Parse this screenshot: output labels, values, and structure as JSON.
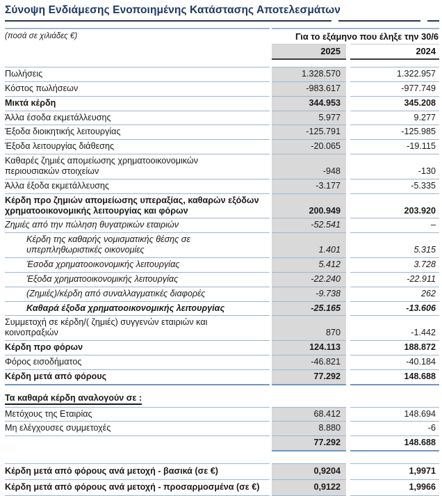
{
  "title": "Σύνοψη Ενδιάμεσης Ενοποιημένης Κατάστασης Αποτελεσμάτων",
  "table": {
    "units_note": "(ποσά σε χιλιάδες €)",
    "period_header": "Για το εξάμηνο που έληξε την 30/6",
    "columns": [
      "2025",
      "2024"
    ],
    "rows": [
      {
        "label": "Πωλήσεις",
        "v2025": "1.328.570",
        "v2024": "1.322.957",
        "style": ""
      },
      {
        "label": "Κόστος πωλήσεων",
        "v2025": "-983.617",
        "v2024": "-977.749",
        "style": ""
      },
      {
        "label": "Μικτά κέρδη",
        "v2025": "344.953",
        "v2024": "345.208",
        "style": "bold"
      },
      {
        "label": "Άλλα έσοδα εκμετάλλευσης",
        "v2025": "5.977",
        "v2024": "9.277",
        "style": ""
      },
      {
        "label": "Έξοδα διοικητικής λειτουργίας",
        "v2025": "-125.791",
        "v2024": "-125.985",
        "style": ""
      },
      {
        "label": "Έξοδα λειτουργίας διάθεσης",
        "v2025": "-20.065",
        "v2024": "-19.115",
        "style": ""
      },
      {
        "label": "Καθαρές ζημιές απομείωσης χρηματοοικονομικών\nπεριουσιακών στοιχείων",
        "v2025": "-948",
        "v2024": "-130",
        "style": ""
      },
      {
        "label": "Άλλα έξοδα εκμετάλλευσης",
        "v2025": "-3.177",
        "v2024": "-5.335",
        "style": ""
      },
      {
        "label": "Κέρδη προ ζημιών απομείωσης υπεραξίας, καθαρών εξόδων\nχρηματοοικονομικής λειτουργίας και φόρων",
        "v2025": "200.949",
        "v2024": "203.920",
        "style": "bold"
      },
      {
        "label": "Ζημιές από την πώληση θυγατρικών εταιριών",
        "v2025": "-52.541",
        "v2024": "–",
        "style": "italic"
      },
      {
        "label": "Κέρδη της καθαρής νομισματικής θέσης σε\nυπερπληθωριστικές οικονομίες",
        "v2025": "1.401",
        "v2024": "5.315",
        "style": "italic indent"
      },
      {
        "label": "Έσοδα χρηματοοικονομικής λειτουργίας",
        "v2025": "5.412",
        "v2024": "3.728",
        "style": "italic indent"
      },
      {
        "label": "Έξοδα χρηματοοικονομικής λειτουργίας",
        "v2025": "-22.240",
        "v2024": "-22.911",
        "style": "italic indent"
      },
      {
        "label": "(Ζημιές)/κέρδη από συναλλαγματικές διαφορές",
        "v2025": "-9.738",
        "v2024": "262",
        "style": "italic indent"
      },
      {
        "label": "Καθαρά έξοδα χρηματοοικονομικής λειτουργίας",
        "v2025": "-25.165",
        "v2024": "-13.606",
        "style": "bold italic indent"
      },
      {
        "label": "Συμμετοχή σε κέρδη/( ζημιές) συγγενών εταιριών και\nκοινοπραξιών",
        "v2025": "870",
        "v2024": "-1.442",
        "style": ""
      },
      {
        "label": "Κέρδη προ φόρων",
        "v2025": "124.113",
        "v2024": "188.872",
        "style": "bold"
      },
      {
        "label": "Φόρος εισοδήματος",
        "v2025": "-46.821",
        "v2024": "-40.184",
        "style": ""
      },
      {
        "label": "Κέρδη μετά από φόρους",
        "v2025": "77.292",
        "v2024": "148.688",
        "style": "bold blue-full"
      },
      {
        "style": "spacer",
        "height": 9
      },
      {
        "label": "Τα καθαρά κέρδη αναλογούν σε :",
        "style": "section"
      },
      {
        "label": "Μετόχους της Εταιρίας",
        "v2025": "68.412",
        "v2024": "148.694",
        "style": ""
      },
      {
        "label": "Μη ελέγχουσες συμμετοχές",
        "v2025": "8.880",
        "v2024": "-6",
        "style": ""
      },
      {
        "label": "",
        "v2025": "77.292",
        "v2024": "148.688",
        "style": "bold blue-vals"
      },
      {
        "style": "spacer",
        "height": 17
      },
      {
        "label": "Κέρδη μετά από φόρους ανά μετοχή - βασικά (σε  €)",
        "v2025": "0,9204",
        "v2024": "1,9971",
        "style": "bold tall"
      },
      {
        "label": "Κέρδη μετά από φόρους ανά μετοχή - προσαρμοσμένα (σε  €)",
        "v2025": "0,9122",
        "v2024": "1,9966",
        "style": "bold tall end-line"
      }
    ]
  },
  "colors": {
    "title_navy": "#1F3864",
    "grid_line": "#9FB5CD",
    "column_shade": "#D9D9D9",
    "total_underline": "#6D96C6",
    "dark_rule": "#3A3A3A"
  }
}
